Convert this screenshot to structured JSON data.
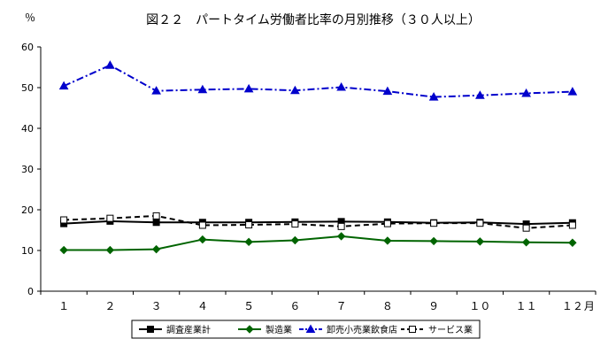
{
  "chart_data": {
    "type": "line",
    "title": "図２２　パートタイム労働者比率の月別推移（３０人以上）",
    "ylabel": "％",
    "xlabel": "",
    "x_unit": "月",
    "ylim": [
      0,
      60
    ],
    "yticks": [
      "0",
      "10",
      "20",
      "30",
      "40",
      "50",
      "60"
    ],
    "categories": [
      "１",
      "２",
      "３",
      "４",
      "５",
      "６",
      "７",
      "８",
      "９",
      "１０",
      "１１",
      "１２"
    ],
    "legend_position": "bottom",
    "grid": false,
    "series": [
      {
        "name": "調査産業計",
        "color": "#000000",
        "marker": "filled-square",
        "line_style": "solid",
        "values": [
          16.6,
          17.2,
          16.9,
          16.9,
          16.9,
          17.0,
          17.1,
          17.0,
          16.8,
          16.9,
          16.5,
          16.8
        ]
      },
      {
        "name": "製造業",
        "color": "#006400",
        "marker": "filled-diamond",
        "line_style": "solid",
        "values": [
          10.1,
          10.1,
          10.3,
          12.7,
          12.1,
          12.5,
          13.5,
          12.4,
          12.3,
          12.2,
          12.0,
          11.9
        ]
      },
      {
        "name": "卸売小売業飲食店",
        "color": "#0000cc",
        "marker": "filled-triangle",
        "line_style": "dash-dot",
        "values": [
          50.4,
          55.5,
          49.2,
          49.5,
          49.7,
          49.3,
          50.1,
          49.1,
          47.7,
          48.1,
          48.6,
          49.0
        ]
      },
      {
        "name": "サービス業",
        "color": "#000000",
        "marker": "open-square",
        "line_style": "dashed",
        "values": [
          17.5,
          17.9,
          18.5,
          16.2,
          16.3,
          16.5,
          15.9,
          16.6,
          16.7,
          16.7,
          15.5,
          16.2
        ]
      }
    ]
  }
}
